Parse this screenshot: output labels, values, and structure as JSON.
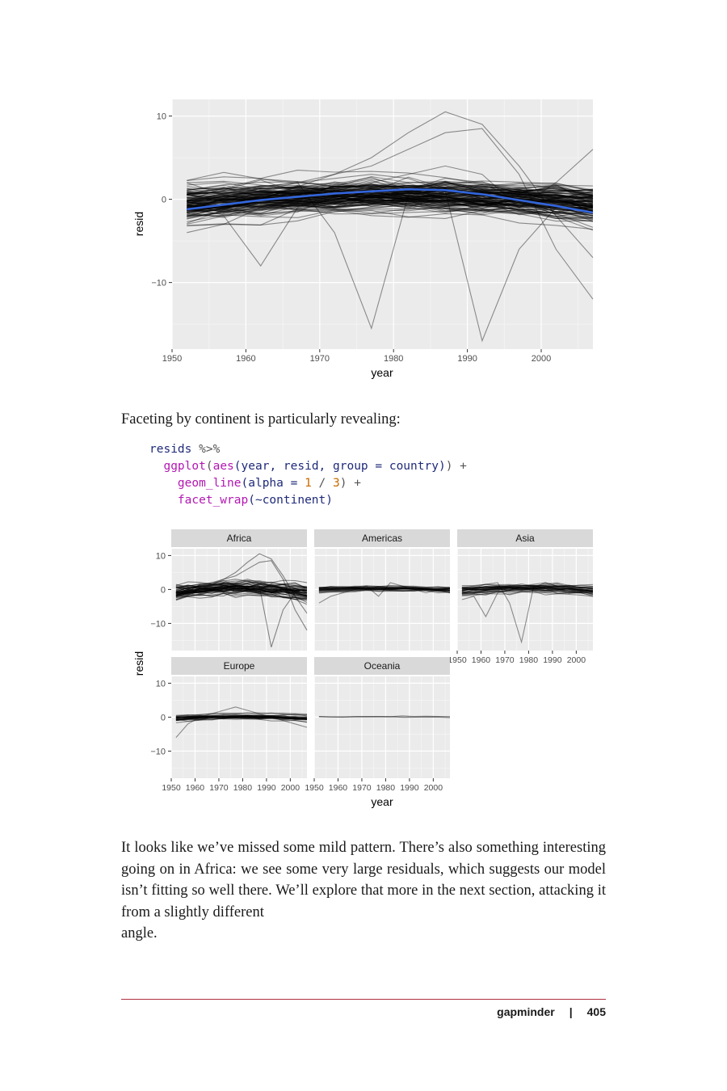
{
  "chart_data": [
    {
      "type": "line",
      "xlabel": "year",
      "ylabel": "resid",
      "xlim": [
        1950,
        2007
      ],
      "ylim": [
        -18,
        12
      ],
      "x_ticks": [
        "1950",
        "1960",
        "1970",
        "1980",
        "1990",
        "2000"
      ],
      "y_ticks": [
        "10",
        "0",
        "−10"
      ],
      "grid": true,
      "smooth_color": "#3366dd",
      "line_color": "#000000",
      "smooth": {
        "x": [
          1952,
          1962,
          1972,
          1982,
          1987,
          1992,
          2002,
          2007
        ],
        "y": [
          -1.2,
          -0.1,
          0.7,
          1.2,
          1.1,
          0.6,
          -0.8,
          -1.6
        ]
      },
      "highlighted": [
        {
          "x": [
            1952,
            1957,
            1962,
            1967,
            1972,
            1977,
            1982,
            1987,
            1992,
            1997,
            2002,
            2007
          ],
          "y": [
            0.5,
            1.0,
            1.5,
            2.0,
            -4.0,
            -15.5,
            0.5,
            2.0,
            1.0,
            0.5,
            0.0,
            -1.0
          ]
        },
        {
          "x": [
            1952,
            1957,
            1962,
            1967,
            1972,
            1977,
            1982,
            1987,
            1992,
            1997,
            2002,
            2007
          ],
          "y": [
            0.5,
            1.0,
            1.5,
            2.0,
            2.5,
            3.0,
            2.5,
            1.0,
            -17.0,
            -6.0,
            -1.0,
            0.5
          ]
        },
        {
          "x": [
            1952,
            1957,
            1962,
            1967,
            1972,
            1977,
            1982,
            1987,
            1992,
            1997,
            2002,
            2007
          ],
          "y": [
            -3.0,
            -2.0,
            -8.0,
            -1.0,
            0.0,
            1.0,
            1.5,
            2.0,
            1.0,
            0.0,
            -1.0,
            -2.0
          ]
        },
        {
          "x": [
            1952,
            1957,
            1962,
            1967,
            1972,
            1977,
            1982,
            1987,
            1992,
            1997,
            2002,
            2007
          ],
          "y": [
            -2.0,
            -1.0,
            0.0,
            1.5,
            3.0,
            5.0,
            8.0,
            10.5,
            9.0,
            4.0,
            -2.0,
            -7.0
          ]
        },
        {
          "x": [
            1952,
            1957,
            1962,
            1967,
            1972,
            1977,
            1982,
            1987,
            1992,
            1997,
            2002,
            2007
          ],
          "y": [
            -1.0,
            0.0,
            1.0,
            2.0,
            3.0,
            4.0,
            6.0,
            8.0,
            8.5,
            3.0,
            -6.0,
            -12.0
          ]
        },
        {
          "x": [
            1952,
            1957,
            1962,
            1967,
            1972,
            1977,
            1982,
            1987,
            1992,
            1997,
            2002,
            2007
          ],
          "y": [
            -4.0,
            -3.0,
            -1.0,
            0.0,
            1.0,
            2.0,
            3.0,
            4.0,
            3.0,
            -1.0,
            2.0,
            6.0
          ]
        }
      ]
    },
    {
      "type": "line",
      "facets": [
        "Africa",
        "Americas",
        "Asia",
        "Europe",
        "Oceania"
      ],
      "xlabel": "year",
      "ylabel": "resid",
      "xlim": [
        1950,
        2007
      ],
      "ylim": [
        -18,
        12
      ],
      "x_ticks": [
        "1950",
        "1960",
        "1970",
        "1980",
        "1990",
        "2000"
      ],
      "y_ticks": [
        "10",
        "0",
        "−10"
      ],
      "grid": true
    }
  ],
  "prose": {
    "intro": "Faceting by continent is particularly revealing:",
    "body": "It looks like we’ve missed some mild pattern. There’s also something interesting going on in Africa: we see some very large residuals, which suggests our model isn’t fitting so well there. We’ll explore that more in the next section, attacking it from a slightly different",
    "body_end": "angle."
  },
  "code": {
    "l1_obj": "resids",
    "l1_op": " %>%",
    "l2_fn": "ggplot",
    "l2_p1": "(",
    "l2_fn2": "aes",
    "l2_args": "(year, resid, group = country)",
    "l2_end": ") +",
    "l3_fn": "geom_line",
    "l3_p1": "(alpha = ",
    "l3_n1": "1",
    "l3_op": " / ",
    "l3_n2": "3",
    "l3_end": ") +",
    "l4_fn": "facet_wrap",
    "l4_args": "(~continent)"
  },
  "footer": {
    "section": "gapminder",
    "separator": "|",
    "page": "405"
  }
}
